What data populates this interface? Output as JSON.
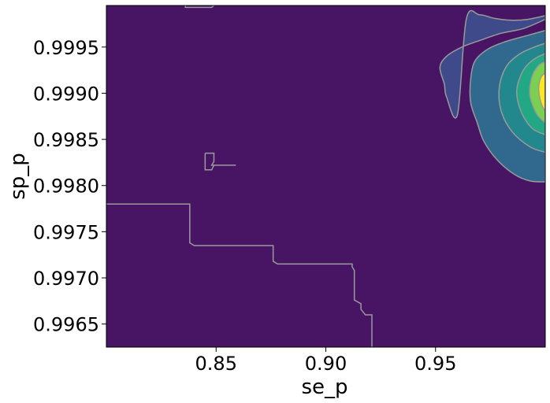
{
  "chart_data": {
    "type": "contour",
    "xlabel": "se_p",
    "ylabel": "sp_p",
    "xlim": [
      0.8,
      1.0
    ],
    "ylim": [
      0.99625,
      0.99995
    ],
    "x_ticks": [
      0.85,
      0.9,
      0.95
    ],
    "x_tick_labels": [
      "0.85",
      "0.90",
      "0.95"
    ],
    "y_ticks": [
      0.9965,
      0.997,
      0.9975,
      0.998,
      0.9985,
      0.999,
      0.9995
    ],
    "y_tick_labels": [
      "0.9965",
      "0.9970",
      "0.9975",
      "0.9980",
      "0.9985",
      "0.9990",
      "0.9995"
    ],
    "colormap": "viridis",
    "background_color": "#471563",
    "contour_line_color": "#9a9a9a",
    "levels": [
      {
        "color": "#3f4a8a",
        "points": [
          [
            1.0,
            0.99984
          ],
          [
            0.992,
            0.9998
          ],
          [
            0.985,
            0.99979
          ],
          [
            0.977,
            0.99981
          ],
          [
            0.97,
            0.99985
          ],
          [
            0.964,
            0.9998
          ],
          [
            0.96,
            0.99877
          ],
          [
            0.955,
            0.99896
          ],
          [
            0.954,
            0.9991
          ],
          [
            0.952,
            0.99928
          ],
          [
            0.955,
            0.9994
          ],
          [
            0.962,
            0.9995
          ],
          [
            0.97,
            0.99957
          ],
          [
            0.98,
            0.99965
          ],
          [
            0.99,
            0.9997
          ],
          [
            1.0,
            0.9998
          ]
        ]
      },
      {
        "color": "#31688e",
        "points": [
          [
            1.0,
            0.99804
          ],
          [
            0.993,
            0.99805
          ],
          [
            0.986,
            0.99812
          ],
          [
            0.978,
            0.99828
          ],
          [
            0.972,
            0.99848
          ],
          [
            0.969,
            0.99868
          ],
          [
            0.966,
            0.9989
          ],
          [
            0.966,
            0.99915
          ],
          [
            0.968,
            0.99935
          ],
          [
            0.974,
            0.99948
          ],
          [
            0.982,
            0.99956
          ],
          [
            0.991,
            0.99962
          ],
          [
            1.0,
            0.99968
          ]
        ]
      },
      {
        "color": "#23888e",
        "points": [
          [
            1.0,
            0.99836
          ],
          [
            0.993,
            0.99842
          ],
          [
            0.985,
            0.99858
          ],
          [
            0.98,
            0.9988
          ],
          [
            0.979,
            0.99905
          ],
          [
            0.982,
            0.99928
          ],
          [
            0.988,
            0.99942
          ],
          [
            0.995,
            0.9995
          ],
          [
            1.0,
            0.99954
          ]
        ]
      },
      {
        "color": "#22a884",
        "points": [
          [
            1.0,
            0.99855
          ],
          [
            0.994,
            0.99862
          ],
          [
            0.989,
            0.9988
          ],
          [
            0.987,
            0.99903
          ],
          [
            0.99,
            0.99925
          ],
          [
            0.995,
            0.99937
          ],
          [
            1.0,
            0.99943
          ]
        ]
      },
      {
        "color": "#7ad151",
        "points": [
          [
            1.0,
            0.99868
          ],
          [
            0.996,
            0.99878
          ],
          [
            0.993,
            0.99898
          ],
          [
            0.994,
            0.99918
          ],
          [
            0.997,
            0.9993
          ],
          [
            1.0,
            0.99934
          ]
        ]
      },
      {
        "color": "#fde725",
        "points": [
          [
            1.0,
            0.9988
          ],
          [
            0.998,
            0.9989
          ],
          [
            0.997,
            0.99905
          ],
          [
            0.998,
            0.99917
          ],
          [
            1.0,
            0.99922
          ]
        ]
      }
    ],
    "stray_contours": [
      [
        [
          0.8,
          0.9978
        ],
        [
          0.838,
          0.9978
        ],
        [
          0.838,
          0.99738
        ],
        [
          0.84,
          0.99735
        ],
        [
          0.876,
          0.99735
        ],
        [
          0.876,
          0.99718
        ],
        [
          0.878,
          0.99715
        ],
        [
          0.912,
          0.99715
        ],
        [
          0.912,
          0.99712
        ],
        [
          0.913,
          0.99708
        ],
        [
          0.913,
          0.99676
        ],
        [
          0.916,
          0.99672
        ],
        [
          0.916,
          0.99666
        ],
        [
          0.918,
          0.9966
        ],
        [
          0.921,
          0.9966
        ],
        [
          0.921,
          0.99625
        ]
      ],
      [
        [
          0.845,
          0.99835
        ],
        [
          0.849,
          0.99835
        ],
        [
          0.849,
          0.99826
        ],
        [
          0.848,
          0.99822
        ],
        [
          0.859,
          0.99822
        ],
        [
          0.849,
          0.99822
        ],
        [
          0.848,
          0.99817
        ],
        [
          0.845,
          0.99817
        ],
        [
          0.845,
          0.99835
        ]
      ],
      [
        [
          0.836,
          0.99995
        ],
        [
          0.836,
          0.99993
        ],
        [
          0.848,
          0.99993
        ],
        [
          0.849,
          0.99995
        ]
      ]
    ]
  }
}
